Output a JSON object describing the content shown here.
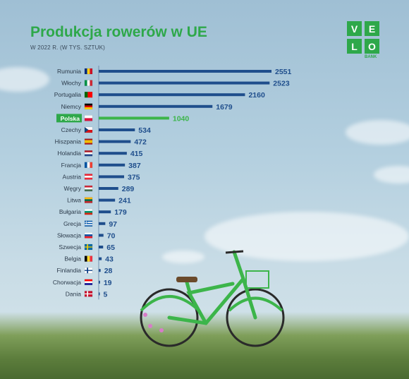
{
  "title": "Produkcja rowerów w UE",
  "subtitle": "W 2022 R. (W TYS. SZTUK)",
  "logo": {
    "letters": [
      "V",
      "E",
      "L",
      "O"
    ],
    "subtext": "BANK",
    "color": "#2ea84a"
  },
  "colors": {
    "bar": "#1f4e8c",
    "highlight": "#3cb54a",
    "highlight_label_bg": "#2ea84a",
    "text": "#2b3a4a",
    "axis": "#6f8fb0"
  },
  "chart_data": {
    "type": "bar",
    "orientation": "horizontal",
    "highlight": "Polska",
    "categories": [
      "Rumunia",
      "Włochy",
      "Portugalia",
      "Niemcy",
      "Polska",
      "Czechy",
      "Hiszpania",
      "Holandia",
      "Francja",
      "Austria",
      "Węgry",
      "Litwa",
      "Bułgaria",
      "Grecja",
      "Słowacja",
      "Szwecja",
      "Belgia",
      "Finlandia",
      "Chorwacja",
      "Dania"
    ],
    "values": [
      2551,
      2523,
      2160,
      1679,
      1040,
      534,
      472,
      415,
      387,
      375,
      289,
      241,
      179,
      97,
      70,
      65,
      43,
      28,
      19,
      5
    ],
    "flags": [
      {
        "type": "v",
        "colors": [
          "#002b7f",
          "#fcd116",
          "#ce1126"
        ]
      },
      {
        "type": "v",
        "colors": [
          "#009246",
          "#ffffff",
          "#ce2b37"
        ]
      },
      {
        "type": "v2",
        "colors": [
          "#006600",
          "#ff0000"
        ]
      },
      {
        "type": "h",
        "colors": [
          "#000000",
          "#dd0000",
          "#ffce00"
        ]
      },
      {
        "type": "h",
        "colors": [
          "#ffffff",
          "#dc143c"
        ]
      },
      {
        "type": "cz",
        "colors": [
          "#ffffff",
          "#d7141a",
          "#11457e"
        ]
      },
      {
        "type": "es",
        "colors": [
          "#aa151b",
          "#f1bf00",
          "#aa151b"
        ]
      },
      {
        "type": "h",
        "colors": [
          "#ae1c28",
          "#ffffff",
          "#21468b"
        ]
      },
      {
        "type": "v",
        "colors": [
          "#0055a4",
          "#ffffff",
          "#ef4135"
        ]
      },
      {
        "type": "h",
        "colors": [
          "#ed2939",
          "#ffffff",
          "#ed2939"
        ]
      },
      {
        "type": "h",
        "colors": [
          "#ce2939",
          "#ffffff",
          "#477050"
        ]
      },
      {
        "type": "h",
        "colors": [
          "#fdb913",
          "#006a44",
          "#c1272d"
        ]
      },
      {
        "type": "h",
        "colors": [
          "#ffffff",
          "#00966e",
          "#d62612"
        ]
      },
      {
        "type": "gr",
        "colors": [
          "#0d5eaf",
          "#ffffff"
        ]
      },
      {
        "type": "h",
        "colors": [
          "#ffffff",
          "#0b4ea2",
          "#ee1c25"
        ]
      },
      {
        "type": "nordic",
        "colors": [
          "#006aa7",
          "#fecc00"
        ]
      },
      {
        "type": "v",
        "colors": [
          "#000000",
          "#fdda24",
          "#ef3340"
        ]
      },
      {
        "type": "nordic",
        "colors": [
          "#ffffff",
          "#003580"
        ]
      },
      {
        "type": "h",
        "colors": [
          "#ff0000",
          "#ffffff",
          "#171796"
        ]
      },
      {
        "type": "nordic",
        "colors": [
          "#c8102e",
          "#ffffff"
        ]
      }
    ],
    "xlim": [
      0,
      2551
    ]
  }
}
